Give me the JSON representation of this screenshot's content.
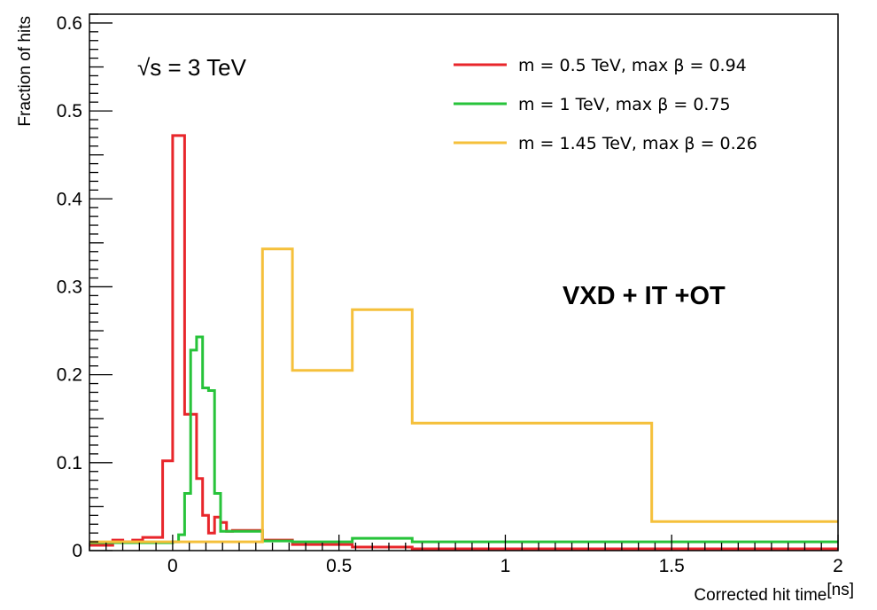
{
  "chart_data": {
    "type": "line",
    "style": "step-histogram",
    "title": "",
    "xlabel": "Corrected hit time",
    "xunit": "[ns]",
    "ylabel": "Fraction of hits",
    "xlim": [
      -0.25,
      2.0
    ],
    "ylim": [
      0,
      0.61
    ],
    "x_ticks": [
      "0",
      "0.5",
      "1",
      "1.5",
      "2"
    ],
    "y_ticks": [
      "0",
      "0.1",
      "0.2",
      "0.3",
      "0.4",
      "0.5",
      "0.6"
    ],
    "grid": false,
    "legend_position": "top-right",
    "annotations": {
      "energy": "√s = 3 TeV",
      "region": "VXD + IT +OT"
    },
    "series": [
      {
        "name": "m = 0.5 TeV, max β = 0.94",
        "color": "#e8262b",
        "edges": [
          -0.25,
          -0.18,
          -0.15,
          -0.12,
          -0.09,
          -0.06,
          -0.03,
          0.0,
          0.036,
          0.072,
          0.09,
          0.108,
          0.126,
          0.144,
          0.162,
          0.18,
          0.27,
          0.36,
          0.54,
          0.72,
          1.44,
          2.0
        ],
        "values": [
          0.006,
          0.012,
          0.01,
          0.012,
          0.015,
          0.015,
          0.102,
          0.472,
          0.155,
          0.082,
          0.04,
          0.02,
          0.038,
          0.032,
          0.022,
          0.023,
          0.012,
          0.007,
          0.004,
          0.002,
          0.002
        ]
      },
      {
        "name": "m = 1 TeV, max β = 0.75",
        "color": "#27c33a",
        "edges": [
          -0.25,
          0.0,
          0.018,
          0.036,
          0.054,
          0.072,
          0.09,
          0.108,
          0.126,
          0.144,
          0.162,
          0.18,
          0.27,
          0.36,
          0.54,
          0.72,
          1.44,
          2.0
        ],
        "values": [
          0.009,
          0.01,
          0.018,
          0.065,
          0.228,
          0.243,
          0.185,
          0.182,
          0.065,
          0.022,
          0.022,
          0.022,
          0.011,
          0.01,
          0.014,
          0.01,
          0.01
        ]
      },
      {
        "name": "m = 1.45 TeV, max β = 0.26",
        "color": "#f5c03b",
        "edges": [
          -0.25,
          0.27,
          0.36,
          0.54,
          0.72,
          1.44,
          2.0
        ],
        "values": [
          0.01,
          0.343,
          0.205,
          0.274,
          0.145,
          0.033
        ]
      }
    ]
  }
}
